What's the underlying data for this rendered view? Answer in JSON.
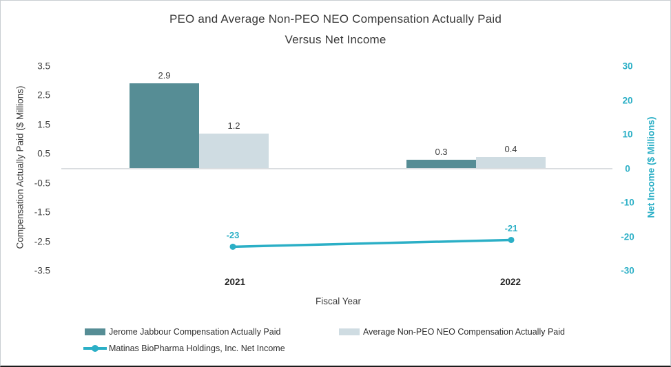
{
  "title": {
    "line1": "PEO and Average Non-PEO NEO Compensation Actually Paid",
    "line2": "Versus Net Income"
  },
  "chart_data": {
    "type": "combo-bar-line",
    "categories": [
      "2021",
      "2022"
    ],
    "series": [
      {
        "name": "Jerome Jabbour Compensation Actually Paid",
        "type": "bar",
        "axis": "left",
        "values": [
          2.9,
          0.3
        ],
        "labels": [
          "2.9",
          "0.3"
        ],
        "color": "#568d95"
      },
      {
        "name": "Average Non-PEO NEO Compensation Actually Paid",
        "type": "bar",
        "axis": "left",
        "values": [
          1.2,
          0.4
        ],
        "labels": [
          "1.2",
          "0.4"
        ],
        "color": "#cfdce2"
      },
      {
        "name": "Matinas BioPharma Holdings, Inc. Net Income",
        "type": "line",
        "axis": "right",
        "values": [
          -23,
          -21
        ],
        "labels": [
          "-23",
          "-21"
        ],
        "color": "#2bafc6"
      }
    ],
    "left_axis": {
      "title": "Compensation Actually Paid ($ Millions)",
      "ticks": [
        3.5,
        2.5,
        1.5,
        0.5,
        -0.5,
        -1.5,
        -2.5,
        -3.5
      ],
      "range": [
        -3.5,
        3.5
      ]
    },
    "right_axis": {
      "title": "Net Income ($ Millions)",
      "ticks": [
        30,
        20,
        10,
        0,
        -10,
        -20,
        -30
      ],
      "range": [
        -30,
        30
      ]
    },
    "x_axis": {
      "title": "Fiscal Year"
    },
    "legend_position": "bottom",
    "grid": "zero-line-only"
  },
  "colors": {
    "bar_primary": "#568d95",
    "bar_secondary": "#cfdce2",
    "line_net_income": "#2bafc6",
    "axis_line": "#dadde0",
    "text": "#3d3d3d"
  }
}
